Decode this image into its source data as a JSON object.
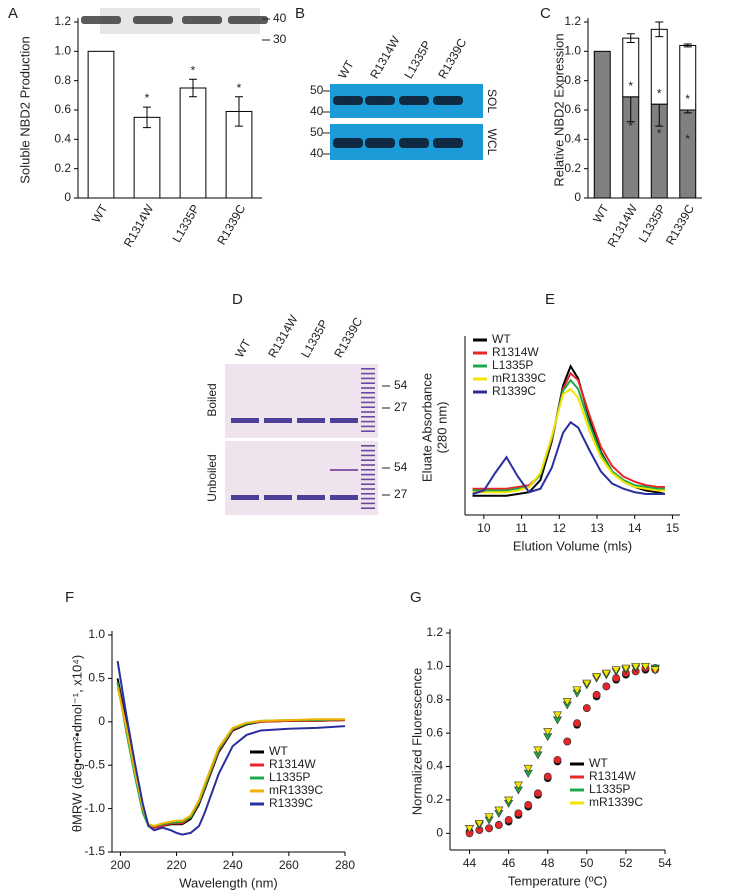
{
  "chart_data": [
    {
      "type": "bar",
      "panel": "A",
      "ylabel": "Soluble NBD2 Production",
      "categories": [
        "WT",
        "R1314W",
        "L1335P",
        "R1339C"
      ],
      "values": [
        1.0,
        0.55,
        0.75,
        0.59
      ],
      "errors": [
        null,
        0.07,
        0.06,
        0.1
      ],
      "annotations": [
        null,
        "*",
        "*",
        "*"
      ],
      "color": "#ffffff",
      "ylim": [
        0,
        1.2
      ],
      "yticks": [
        0,
        0.2,
        0.4,
        0.6,
        0.8,
        {
          "value": 1,
          "label": "1.0"
        },
        1.2
      ]
    },
    {
      "type": "bar",
      "panel": "C",
      "ylabel": "Relative NBD2 Expression",
      "stacked": true,
      "categories": [
        "WT",
        "R1314W",
        "L1335P",
        "R1339C"
      ],
      "series": [
        {
          "color": "#808080",
          "values": [
            1.0,
            0.69,
            0.64,
            0.6
          ],
          "errors": [
            null,
            0.17,
            0.15,
            0.02
          ],
          "annotations": [
            null,
            "*",
            "*",
            "*"
          ]
        },
        {
          "color": "#ffffff",
          "values": [
            null,
            0.4,
            0.51,
            0.44
          ],
          "errors": [
            null,
            0.03,
            0.05,
            0.01
          ],
          "annotations": [
            null,
            "*",
            "*",
            "*"
          ]
        }
      ],
      "ylim": [
        0,
        1.2
      ],
      "yticks": [
        0,
        0.2,
        0.4,
        0.6,
        0.8,
        {
          "value": 1,
          "label": "1.0"
        },
        1.2
      ]
    },
    {
      "type": "line",
      "panel": "E",
      "ylabel": [
        "Eluate Absorbance",
        "(280 nm)"
      ],
      "xlabel": "Elution Volume (mls)",
      "x": [
        9.7,
        10.0,
        10.3,
        10.6,
        10.9,
        11.2,
        11.5,
        11.8,
        12.1,
        12.3,
        12.5,
        12.8,
        13.1,
        13.4,
        13.7,
        14.0,
        14.3,
        14.6,
        14.8
      ],
      "series": [
        {
          "name": "WT",
          "color": "#000000",
          "values": [
            0.11,
            0.11,
            0.11,
            0.11,
            0.12,
            0.13,
            0.2,
            0.42,
            0.74,
            0.85,
            0.78,
            0.55,
            0.36,
            0.25,
            0.19,
            0.16,
            0.14,
            0.13,
            0.12
          ]
        },
        {
          "name": "R1314W",
          "color": "#e8262a",
          "values": [
            0.15,
            0.15,
            0.15,
            0.15,
            0.16,
            0.17,
            0.23,
            0.43,
            0.72,
            0.81,
            0.77,
            0.57,
            0.39,
            0.28,
            0.22,
            0.19,
            0.17,
            0.16,
            0.16
          ]
        },
        {
          "name": "L1335P",
          "color": "#1fa84a",
          "values": [
            0.14,
            0.14,
            0.14,
            0.14,
            0.15,
            0.16,
            0.23,
            0.44,
            0.71,
            0.77,
            0.72,
            0.52,
            0.35,
            0.25,
            0.2,
            0.17,
            0.16,
            0.15,
            0.15
          ]
        },
        {
          "name": "mR1339C",
          "color": "#f2e500",
          "values": [
            0.13,
            0.13,
            0.13,
            0.13,
            0.14,
            0.16,
            0.24,
            0.45,
            0.69,
            0.72,
            0.67,
            0.48,
            0.33,
            0.24,
            0.19,
            0.16,
            0.15,
            0.14,
            0.14
          ]
        },
        {
          "name": "R1339C",
          "color": "#2b2f9e",
          "values": [
            0.12,
            0.14,
            0.24,
            0.33,
            0.22,
            0.13,
            0.15,
            0.27,
            0.47,
            0.53,
            0.5,
            0.37,
            0.25,
            0.18,
            0.15,
            0.13,
            0.12,
            0.12,
            0.12
          ]
        }
      ],
      "legend": "upper left",
      "xlim": [
        9.5,
        15.2
      ],
      "xticks": [
        10,
        11,
        12,
        13,
        14,
        15
      ],
      "ylim": [
        0,
        1
      ]
    },
    {
      "type": "line",
      "panel": "F",
      "ylabel": "θMRW (deg•cm²•dmol⁻¹, x10⁴)",
      "xlabel": "Wavelength (nm)",
      "x": [
        199,
        202,
        205,
        208,
        210,
        212,
        215,
        218,
        220,
        222,
        225,
        228,
        230,
        235,
        240,
        245,
        250,
        260,
        270,
        280
      ],
      "series": [
        {
          "name": "WT",
          "color": "#000000",
          "values": [
            0.5,
            0.0,
            -0.5,
            -1.0,
            -1.2,
            -1.22,
            -1.2,
            -1.18,
            -1.18,
            -1.18,
            -1.12,
            -0.95,
            -0.78,
            -0.35,
            -0.1,
            -0.03,
            0.0,
            0.01,
            0.01,
            0.02
          ]
        },
        {
          "name": "R1314W",
          "color": "#e8262a",
          "values": [
            0.45,
            -0.05,
            -0.55,
            -1.02,
            -1.2,
            -1.22,
            -1.2,
            -1.17,
            -1.17,
            -1.17,
            -1.1,
            -0.93,
            -0.76,
            -0.33,
            -0.09,
            -0.02,
            0.0,
            0.01,
            0.01,
            0.02
          ]
        },
        {
          "name": "L1335P",
          "color": "#1fa84a",
          "values": [
            0.45,
            -0.1,
            -0.6,
            -1.05,
            -1.2,
            -1.2,
            -1.18,
            -1.16,
            -1.16,
            -1.15,
            -1.1,
            -0.92,
            -0.75,
            -0.32,
            -0.08,
            -0.02,
            0.01,
            0.02,
            0.02,
            0.03
          ]
        },
        {
          "name": "mR1339C",
          "color": "#f0b400",
          "values": [
            0.4,
            -0.05,
            -0.55,
            -1.0,
            -1.18,
            -1.2,
            -1.17,
            -1.15,
            -1.14,
            -1.14,
            -1.08,
            -0.9,
            -0.72,
            -0.3,
            -0.07,
            -0.01,
            0.01,
            0.02,
            0.03,
            0.03
          ]
        },
        {
          "name": "R1339C",
          "color": "#2b2f9e",
          "values": [
            0.7,
            0.1,
            -0.45,
            -0.95,
            -1.2,
            -1.25,
            -1.22,
            -1.25,
            -1.28,
            -1.3,
            -1.28,
            -1.2,
            -1.05,
            -0.6,
            -0.28,
            -0.15,
            -0.1,
            -0.08,
            -0.07,
            -0.05
          ]
        }
      ],
      "legend": "lower right",
      "xlim": [
        197,
        280
      ],
      "xticks": [
        200,
        220,
        240,
        260,
        280
      ],
      "ylim": [
        -1.5,
        1.0
      ],
      "yticks": [
        -1.5,
        {
          "value": -1,
          "label": "-1.0"
        },
        -0.5,
        0,
        0.5,
        {
          "value": 1,
          "label": "1.0"
        }
      ]
    },
    {
      "type": "scatter",
      "panel": "G",
      "ylabel": "Normalized Fluorescence",
      "xlabel": "Temperature (ºC)",
      "x": [
        44,
        44.5,
        45,
        45.5,
        46,
        46.5,
        47,
        47.5,
        48,
        48.5,
        49,
        49.5,
        50,
        50.5,
        51,
        51.5,
        52,
        52.5,
        53,
        53.5
      ],
      "series": [
        {
          "name": "WT",
          "color": "#000000",
          "marker": "o",
          "values": [
            0.01,
            0.02,
            0.03,
            0.05,
            0.07,
            0.11,
            0.16,
            0.23,
            0.33,
            0.43,
            0.55,
            0.65,
            0.75,
            0.82,
            0.88,
            0.92,
            0.95,
            0.97,
            0.98,
            0.99
          ]
        },
        {
          "name": "R1314W",
          "color": "#e8262a",
          "marker": "o",
          "values": [
            0.0,
            0.02,
            0.03,
            0.05,
            0.08,
            0.12,
            0.17,
            0.24,
            0.34,
            0.44,
            0.55,
            0.66,
            0.75,
            0.83,
            0.88,
            0.93,
            0.96,
            0.97,
            0.99,
            0.98
          ]
        },
        {
          "name": "L1335P",
          "color": "#1fa84a",
          "marker": "v",
          "values": [
            0.03,
            0.05,
            0.08,
            0.12,
            0.18,
            0.26,
            0.36,
            0.47,
            0.58,
            0.68,
            0.77,
            0.84,
            0.89,
            0.93,
            0.95,
            0.97,
            0.98,
            0.99,
            1.0,
            0.99
          ]
        },
        {
          "name": "mR1339C",
          "color": "#f2e500",
          "marker": "v",
          "values": [
            0.03,
            0.06,
            0.1,
            0.14,
            0.2,
            0.29,
            0.39,
            0.5,
            0.61,
            0.71,
            0.79,
            0.86,
            0.9,
            0.94,
            0.96,
            0.98,
            0.99,
            1.0,
            1.0,
            0.98
          ]
        }
      ],
      "legend": "lower right",
      "xlim": [
        43,
        54
      ],
      "xticks": [
        44,
        46,
        48,
        50,
        52,
        54
      ],
      "ylim": [
        -0.1,
        1.2
      ],
      "yticks": [
        0,
        0.2,
        0.4,
        0.6,
        0.8,
        {
          "value": 1,
          "label": "1.0"
        },
        1.2
      ]
    }
  ],
  "blot_a": {
    "markers": [
      "40",
      "30"
    ]
  },
  "blot_b": {
    "panel": "B",
    "lanes": [
      "WT",
      "R1314W",
      "L1335P",
      "R1339C"
    ],
    "rows": [
      "SOL",
      "WCL"
    ],
    "markers": [
      "50",
      "40"
    ]
  },
  "gel_d": {
    "panel": "D",
    "lanes": [
      "WT",
      "R1314W",
      "L1335P",
      "R1339C"
    ],
    "rows": [
      "Boiled",
      "Unboiled"
    ],
    "markers": [
      "54",
      "27"
    ]
  }
}
